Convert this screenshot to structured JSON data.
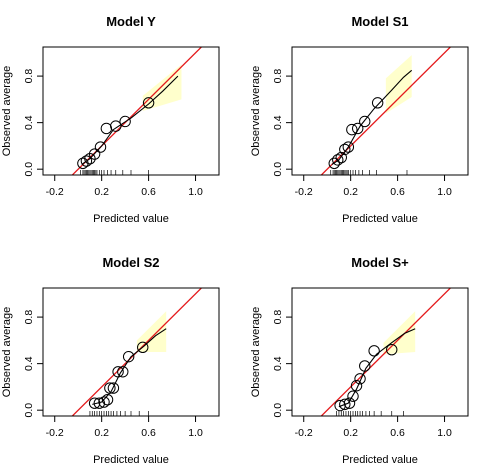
{
  "colors": {
    "ideal_line": "#e41a1c",
    "smooth_line": "#000000",
    "band_fill": "#ffffcc",
    "point_stroke": "#000000",
    "axis": "#000000"
  },
  "chart_data": [
    {
      "type": "scatter",
      "title": "Model Y",
      "xlabel": "Predicted value",
      "ylabel": "Observed average",
      "xlim": [
        -0.3,
        1.2
      ],
      "ylim": [
        -0.05,
        1.05
      ],
      "xticks": [
        -0.2,
        0.2,
        0.6,
        1.0
      ],
      "xtick_labels": [
        "-0.2",
        "0.2",
        "0.6",
        "1.0"
      ],
      "yticks": [
        0.0,
        0.4,
        0.8
      ],
      "ytick_labels": [
        "0.0",
        "0.4",
        "0.8"
      ],
      "points": [
        {
          "x": 0.04,
          "y": 0.05
        },
        {
          "x": 0.07,
          "y": 0.07
        },
        {
          "x": 0.1,
          "y": 0.09
        },
        {
          "x": 0.14,
          "y": 0.13
        },
        {
          "x": 0.19,
          "y": 0.19
        },
        {
          "x": 0.24,
          "y": 0.35
        },
        {
          "x": 0.32,
          "y": 0.37
        },
        {
          "x": 0.4,
          "y": 0.41
        },
        {
          "x": 0.6,
          "y": 0.57
        }
      ],
      "smooth": [
        {
          "x": 0.03,
          "y": 0.04
        },
        {
          "x": 0.1,
          "y": 0.09
        },
        {
          "x": 0.2,
          "y": 0.2
        },
        {
          "x": 0.3,
          "y": 0.34
        },
        {
          "x": 0.45,
          "y": 0.44
        },
        {
          "x": 0.6,
          "y": 0.56
        },
        {
          "x": 0.72,
          "y": 0.67
        },
        {
          "x": 0.85,
          "y": 0.8
        }
      ],
      "band": {
        "x": [
          0.55,
          0.88
        ],
        "upper": [
          0.63,
          0.9
        ],
        "lower": [
          0.5,
          0.6
        ]
      },
      "rug": [
        0.02,
        0.04,
        0.05,
        0.06,
        0.07,
        0.08,
        0.09,
        0.1,
        0.11,
        0.12,
        0.13,
        0.14,
        0.15,
        0.16,
        0.18,
        0.2,
        0.22,
        0.25,
        0.28,
        0.32,
        0.38,
        0.45,
        0.6
      ]
    },
    {
      "type": "scatter",
      "title": "Model S1",
      "xlabel": "Predicted value",
      "ylabel": "Observed average",
      "xlim": [
        -0.3,
        1.2
      ],
      "ylim": [
        -0.05,
        1.05
      ],
      "xticks": [
        -0.2,
        0.2,
        0.6,
        1.0
      ],
      "xtick_labels": [
        "-0.2",
        "0.2",
        "0.6",
        "1.0"
      ],
      "yticks": [
        0.0,
        0.4,
        0.8
      ],
      "ytick_labels": [
        "0.0",
        "0.4",
        "0.8"
      ],
      "points": [
        {
          "x": 0.06,
          "y": 0.05
        },
        {
          "x": 0.09,
          "y": 0.08
        },
        {
          "x": 0.12,
          "y": 0.1
        },
        {
          "x": 0.15,
          "y": 0.17
        },
        {
          "x": 0.18,
          "y": 0.19
        },
        {
          "x": 0.21,
          "y": 0.34
        },
        {
          "x": 0.26,
          "y": 0.35
        },
        {
          "x": 0.32,
          "y": 0.41
        },
        {
          "x": 0.43,
          "y": 0.57
        }
      ],
      "smooth": [
        {
          "x": 0.04,
          "y": 0.04
        },
        {
          "x": 0.1,
          "y": 0.08
        },
        {
          "x": 0.18,
          "y": 0.19
        },
        {
          "x": 0.28,
          "y": 0.37
        },
        {
          "x": 0.4,
          "y": 0.52
        },
        {
          "x": 0.55,
          "y": 0.68
        },
        {
          "x": 0.65,
          "y": 0.79
        },
        {
          "x": 0.72,
          "y": 0.85
        }
      ],
      "band": {
        "x": [
          0.5,
          0.72
        ],
        "upper": [
          0.78,
          0.98
        ],
        "lower": [
          0.48,
          0.62
        ]
      },
      "rug": [
        0.03,
        0.05,
        0.06,
        0.07,
        0.08,
        0.09,
        0.1,
        0.11,
        0.12,
        0.13,
        0.14,
        0.15,
        0.16,
        0.17,
        0.18,
        0.2,
        0.22,
        0.24,
        0.27,
        0.3,
        0.36,
        0.42,
        0.68
      ]
    },
    {
      "type": "scatter",
      "title": "Model S2",
      "xlabel": "Predicted value",
      "ylabel": "Observed average",
      "xlim": [
        -0.3,
        1.2
      ],
      "ylim": [
        -0.05,
        1.05
      ],
      "xticks": [
        -0.2,
        0.2,
        0.6,
        1.0
      ],
      "xtick_labels": [
        "-0.2",
        "0.2",
        "0.6",
        "1.0"
      ],
      "yticks": [
        0.0,
        0.4,
        0.8
      ],
      "ytick_labels": [
        "0.0",
        "0.4",
        "0.8"
      ],
      "points": [
        {
          "x": 0.14,
          "y": 0.06
        },
        {
          "x": 0.18,
          "y": 0.06
        },
        {
          "x": 0.22,
          "y": 0.07
        },
        {
          "x": 0.25,
          "y": 0.09
        },
        {
          "x": 0.27,
          "y": 0.19
        },
        {
          "x": 0.3,
          "y": 0.19
        },
        {
          "x": 0.34,
          "y": 0.33
        },
        {
          "x": 0.38,
          "y": 0.33
        },
        {
          "x": 0.43,
          "y": 0.46
        },
        {
          "x": 0.55,
          "y": 0.54
        }
      ],
      "smooth": [
        {
          "x": 0.12,
          "y": 0.05
        },
        {
          "x": 0.2,
          "y": 0.07
        },
        {
          "x": 0.28,
          "y": 0.16
        },
        {
          "x": 0.36,
          "y": 0.32
        },
        {
          "x": 0.45,
          "y": 0.46
        },
        {
          "x": 0.56,
          "y": 0.55
        },
        {
          "x": 0.66,
          "y": 0.64
        },
        {
          "x": 0.75,
          "y": 0.7
        }
      ],
      "band": {
        "x": [
          0.5,
          0.75
        ],
        "upper": [
          0.6,
          0.85
        ],
        "lower": [
          0.5,
          0.5
        ]
      },
      "rug": [
        0.1,
        0.12,
        0.14,
        0.16,
        0.18,
        0.2,
        0.22,
        0.24,
        0.26,
        0.28,
        0.3,
        0.33,
        0.36,
        0.4,
        0.45,
        0.52,
        0.6
      ]
    },
    {
      "type": "scatter",
      "title": "Model S+",
      "xlabel": "Predicted value",
      "ylabel": "Observed average",
      "xlim": [
        -0.3,
        1.2
      ],
      "ylim": [
        -0.05,
        1.05
      ],
      "xticks": [
        -0.2,
        0.2,
        0.6,
        1.0
      ],
      "xtick_labels": [
        "-0.2",
        "0.2",
        "0.6",
        "1.0"
      ],
      "yticks": [
        0.0,
        0.4,
        0.8
      ],
      "ytick_labels": [
        "0.0",
        "0.4",
        "0.8"
      ],
      "points": [
        {
          "x": 0.11,
          "y": 0.04
        },
        {
          "x": 0.15,
          "y": 0.05
        },
        {
          "x": 0.19,
          "y": 0.06
        },
        {
          "x": 0.22,
          "y": 0.12
        },
        {
          "x": 0.25,
          "y": 0.21
        },
        {
          "x": 0.28,
          "y": 0.27
        },
        {
          "x": 0.32,
          "y": 0.38
        },
        {
          "x": 0.4,
          "y": 0.51
        },
        {
          "x": 0.55,
          "y": 0.52
        }
      ],
      "smooth": [
        {
          "x": 0.1,
          "y": 0.03
        },
        {
          "x": 0.18,
          "y": 0.06
        },
        {
          "x": 0.25,
          "y": 0.18
        },
        {
          "x": 0.33,
          "y": 0.36
        },
        {
          "x": 0.42,
          "y": 0.48
        },
        {
          "x": 0.55,
          "y": 0.58
        },
        {
          "x": 0.66,
          "y": 0.66
        },
        {
          "x": 0.75,
          "y": 0.7
        }
      ],
      "band": {
        "x": [
          0.48,
          0.75
        ],
        "upper": [
          0.58,
          0.85
        ],
        "lower": [
          0.48,
          0.5
        ]
      },
      "rug": [
        0.08,
        0.1,
        0.12,
        0.14,
        0.16,
        0.18,
        0.2,
        0.22,
        0.24,
        0.26,
        0.28,
        0.3,
        0.33,
        0.36,
        0.4,
        0.46,
        0.55,
        0.65
      ]
    }
  ]
}
